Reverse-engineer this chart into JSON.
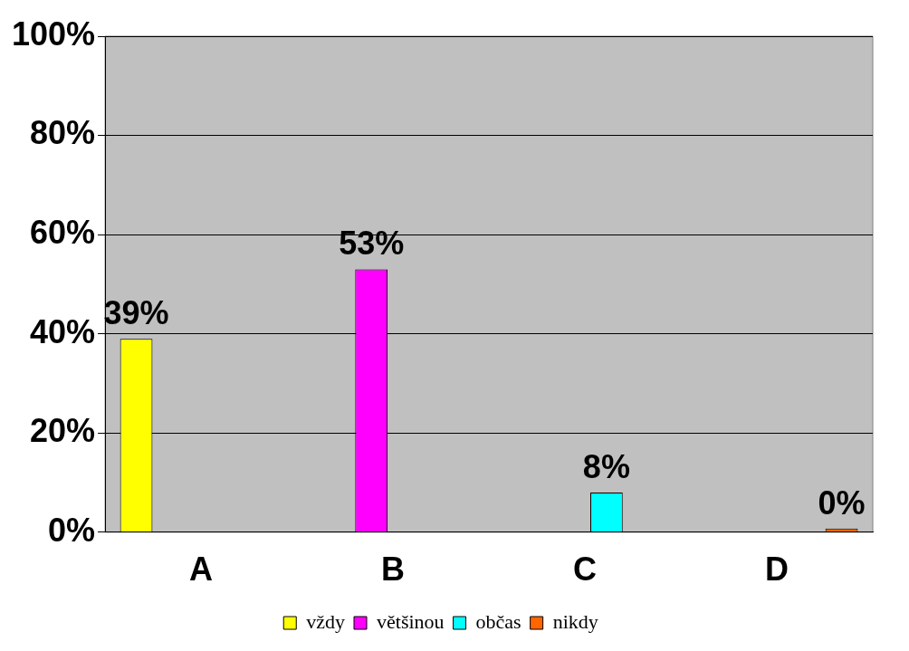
{
  "chart_data": {
    "type": "bar",
    "categories": [
      "A",
      "B",
      "C",
      "D"
    ],
    "series": [
      {
        "name": "vždy",
        "color": "#ffff00",
        "values": [
          39,
          null,
          null,
          null
        ],
        "value_labels": [
          "39%",
          null,
          null,
          null
        ]
      },
      {
        "name": "většinou",
        "color": "#ff00ff",
        "values": [
          null,
          53,
          null,
          null
        ],
        "value_labels": [
          null,
          "53%",
          null,
          null
        ]
      },
      {
        "name": "občas",
        "color": "#00ffff",
        "values": [
          null,
          null,
          8,
          null
        ],
        "value_labels": [
          null,
          null,
          "8%",
          null
        ]
      },
      {
        "name": "nikdy",
        "color": "#ff6600",
        "values": [
          null,
          null,
          null,
          0
        ],
        "value_labels": [
          null,
          null,
          null,
          "0%"
        ]
      }
    ],
    "ylim": [
      0,
      100
    ],
    "yticks": [
      {
        "value": 0,
        "label": "0%"
      },
      {
        "value": 20,
        "label": "20%"
      },
      {
        "value": 40,
        "label": "40%"
      },
      {
        "value": 60,
        "label": "60%"
      },
      {
        "value": 80,
        "label": "80%"
      },
      {
        "value": 100,
        "label": "100%"
      }
    ],
    "grid": "y",
    "legend": "bottom"
  }
}
